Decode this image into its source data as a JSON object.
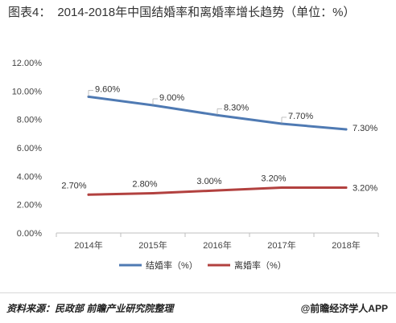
{
  "header": {
    "label": "图表4：",
    "title": "2014-2018年中国结婚率和离婚率增长趋势（单位：%）"
  },
  "chart_data": {
    "type": "line",
    "categories": [
      "2014年",
      "2015年",
      "2016年",
      "2017年",
      "2018年"
    ],
    "series": [
      {
        "name": "结婚率（%）",
        "values": [
          9.6,
          9.0,
          8.3,
          7.7,
          7.3
        ],
        "labels": [
          "9.60%",
          "9.00%",
          "8.30%",
          "7.70%",
          "7.30%"
        ],
        "color": "#4f7ab3"
      },
      {
        "name": "离婚率（%）",
        "values": [
          2.7,
          2.8,
          3.0,
          3.2,
          3.2
        ],
        "labels": [
          "2.70%",
          "2.80%",
          "3.00%",
          "3.20%",
          "3.20%"
        ],
        "color": "#b2413f"
      }
    ],
    "yticks": [
      "0.00%",
      "2.00%",
      "4.00%",
      "6.00%",
      "8.00%",
      "10.00%",
      "12.00%"
    ],
    "ylim": [
      0,
      12
    ],
    "grid": false,
    "legend": "bottom"
  },
  "footer": {
    "source": "资料来源：民政部 前瞻产业研究院整理",
    "brand": "@前瞻经济学人APP"
  }
}
